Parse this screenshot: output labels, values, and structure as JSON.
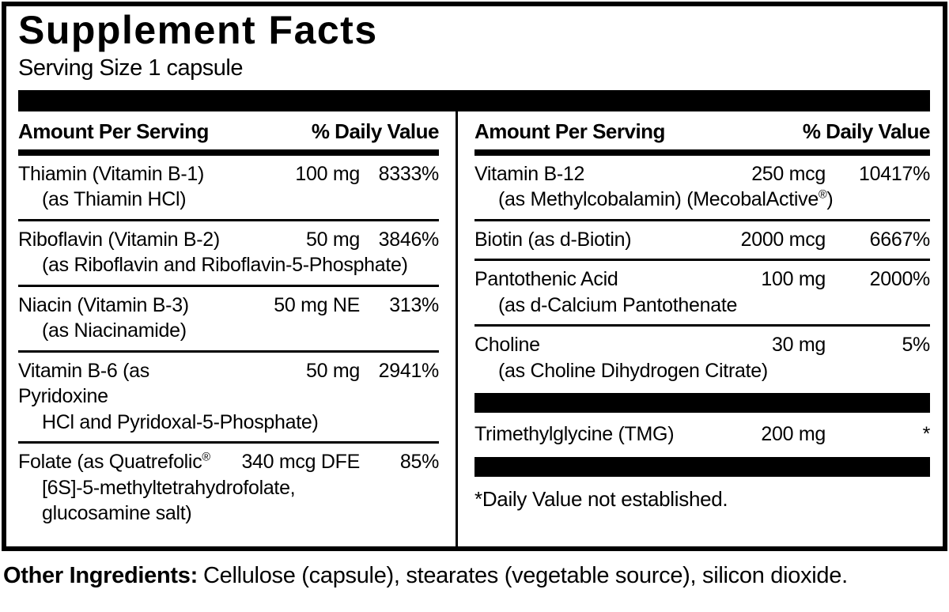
{
  "colors": {
    "ink": "#000000",
    "background": "#ffffff"
  },
  "title": "Supplement Facts",
  "serving_size": "Serving Size 1 capsule",
  "columns": [
    {
      "header": {
        "amount_label": "Amount Per Serving",
        "dv_label": "% Daily Value"
      },
      "rows": [
        {
          "name": "Thiamin (Vitamin B-1)",
          "amount": "100 mg",
          "dv": "8333%",
          "sub0": "(as Thiamin HCl)"
        },
        {
          "name": "Riboflavin (Vitamin B-2)",
          "amount": "50 mg",
          "dv": "3846%",
          "sub0": "(as Riboflavin and Riboflavin-5-Phosphate)"
        },
        {
          "name": "Niacin (Vitamin B-3)",
          "amount": "50 mg NE",
          "dv": "313%",
          "sub0": "(as Niacinamide)"
        },
        {
          "name": "Vitamin B-6 (as Pyridoxine",
          "amount": "50 mg",
          "dv": "2941%",
          "sub0": "HCl and Pyridoxal-5-Phosphate)"
        },
        {
          "name": "Folate (as Quatrefolic",
          "name_sup": "®",
          "amount": "340 mcg DFE",
          "dv": "85%",
          "sub0": "[6S]-5-methyltetrahydrofolate,",
          "sub1": "glucosamine salt)"
        }
      ]
    },
    {
      "header": {
        "amount_label": "Amount Per Serving",
        "dv_label": "% Daily Value"
      },
      "rows": [
        {
          "name": "Vitamin B-12",
          "amount": "250 mcg",
          "dv": "10417%",
          "sub0": "(as Methylcobalamin) (MecobalActive",
          "sub0_sup": "®",
          "sub0_post": ")"
        },
        {
          "name": "Biotin (as d-Biotin)",
          "amount": "2000 mcg",
          "dv": "6667%"
        },
        {
          "name": "Pantothenic Acid",
          "amount": "100 mg",
          "dv": "2000%",
          "sub0": "(as d-Calcium Pantothenate"
        },
        {
          "name": "Choline",
          "amount": "30 mg",
          "dv": "5%",
          "sub0": "(as Choline Dihydrogen Citrate)"
        },
        {
          "name": "Trimethylglycine (TMG)",
          "amount": "200 mg",
          "dv": "*"
        }
      ],
      "footnote": "*Daily Value not established."
    }
  ],
  "other_ingredients": {
    "label": "Other Ingredients:",
    "text": "Cellulose (capsule), stearates (vegetable source), silicon dioxide."
  }
}
